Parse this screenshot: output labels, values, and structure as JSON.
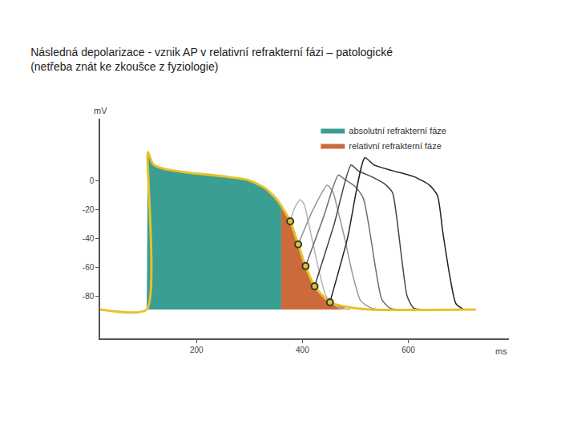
{
  "chart_data": {
    "type": "line",
    "title": "Následná depolarizace - vznik AP v relativní refrakterní fázi – patologické\n(netřeba znát ke zkoušce z fyziologie)",
    "x_label": "ms",
    "y_label": "mV",
    "xlim": [
      18,
      790
    ],
    "ylim": [
      -109,
      43
    ],
    "xticks": [
      200,
      400,
      600
    ],
    "yticks": [
      0,
      -20,
      -40,
      -60,
      -80
    ],
    "grid": false,
    "legend": "upper right",
    "series": [
      {
        "name": "absolutní refrakterní fáze",
        "type": "area",
        "color": "#3a9e92",
        "x": [
          106,
          108,
          117,
          132,
          177,
          253,
          298,
          329,
          352,
          360,
          360
        ],
        "values": [
          -89,
          20,
          12,
          9,
          6,
          3,
          0.5,
          -5,
          -13,
          -18,
          -89
        ]
      },
      {
        "name": "relativní refrakterní fáze",
        "type": "area",
        "color": "#cc6a3c",
        "x": [
          360,
          360,
          377,
          392,
          406,
          423,
          452,
          480,
          480
        ],
        "values": [
          -89,
          -18,
          -28,
          -44,
          -59,
          -73,
          -84,
          -87,
          -89
        ]
      },
      {
        "type": "line",
        "color": "#b4b4b4",
        "x": [
          377,
          385,
          396,
          403,
          415,
          430,
          445,
          470,
          490
        ],
        "values": [
          -28,
          -19,
          -13,
          -16,
          -35,
          -60,
          -80,
          -88,
          -89
        ]
      },
      {
        "type": "line",
        "color": "#959595",
        "x": [
          392,
          420,
          447,
          458,
          466,
          480,
          495,
          510,
          530,
          545
        ],
        "values": [
          -44,
          -20,
          -3,
          -8,
          -19,
          -40,
          -65,
          -83,
          -88,
          -89
        ]
      },
      {
        "type": "line",
        "color": "#6e6e6e",
        "x": [
          406,
          440,
          468,
          480,
          500,
          515,
          525,
          538,
          550,
          565,
          580
        ],
        "values": [
          -59,
          -25,
          4,
          1,
          -4,
          -12,
          -30,
          -60,
          -82,
          -88,
          -89
        ]
      },
      {
        "type": "line",
        "color": "#444444",
        "x": [
          423,
          460,
          492,
          505,
          530,
          555,
          570,
          578,
          588,
          598,
          610,
          625
        ],
        "values": [
          -73,
          -30,
          11,
          7,
          3,
          -2,
          -8,
          -25,
          -55,
          -80,
          -88,
          -89
        ]
      },
      {
        "type": "line",
        "color": "#222222",
        "x": [
          452,
          485,
          518,
          535,
          570,
          610,
          640,
          655,
          665,
          678,
          690,
          705,
          727
        ],
        "values": [
          -84,
          -40,
          16,
          11,
          7,
          3,
          -3,
          -10,
          -35,
          -65,
          -85,
          -89,
          -89
        ]
      },
      {
        "type": "line",
        "color": "#e6c229",
        "x": [
          18,
          106,
          108,
          117,
          132,
          177,
          253,
          298,
          329,
          352,
          377,
          392,
          406,
          423,
          452,
          480,
          525,
          727
        ],
        "values": [
          -89,
          -89,
          20,
          12,
          9,
          6,
          3,
          0.5,
          -5,
          -13,
          -28,
          -44,
          -59,
          -73,
          -84,
          -87,
          -89,
          -89
        ]
      },
      {
        "type": "scatter",
        "marker": "circle",
        "color": "#3a3a1a",
        "x": [
          377,
          392,
          406,
          423,
          452
        ],
        "values": [
          -28,
          -44,
          -59,
          -73,
          -84
        ]
      }
    ]
  }
}
